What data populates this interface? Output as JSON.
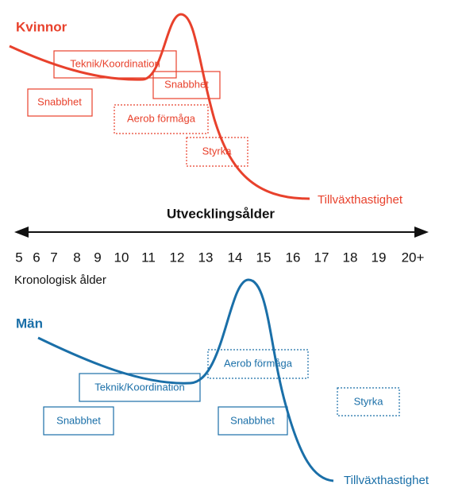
{
  "women": {
    "title": "Kvinnor",
    "boxes": [
      "Teknik/Koordination",
      "Snabbhet",
      "Snabbhet",
      "Aerob förmåga",
      "Styrka"
    ],
    "curve_label": "Tillväxthastighet"
  },
  "axis": {
    "title": "Utvecklingsålder",
    "ages": [
      "5",
      "6",
      "7",
      "8",
      "9",
      "10",
      "11",
      "12",
      "13",
      "14",
      "15",
      "16",
      "17",
      "18",
      "19",
      "20+"
    ],
    "caption": "Kronologisk ålder"
  },
  "men": {
    "title": "Män",
    "boxes": [
      "Aerob förmåga",
      "Teknik/Koordination",
      "Snabbhet",
      "Snabbhet",
      "Styrka"
    ],
    "curve_label": "Tillväxthastighet"
  }
}
